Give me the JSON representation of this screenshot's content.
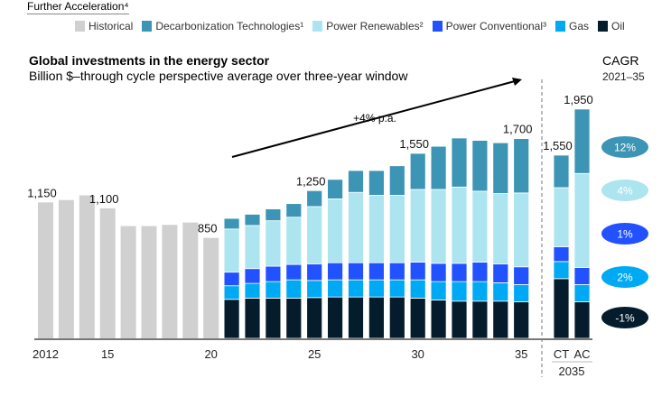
{
  "section_title": "Further Acceleration⁴",
  "legend": [
    {
      "label": "Historical",
      "color": "#d0d0d0"
    },
    {
      "label": "Decarbonization Technologies¹",
      "color": "#3d95b5"
    },
    {
      "label": "Power Renewables²",
      "color": "#ace5ef"
    },
    {
      "label": "Power Conventional³",
      "color": "#2251ff"
    },
    {
      "label": "Gas",
      "color": "#00a9f4"
    },
    {
      "label": "Oil",
      "color": "#051c2c"
    }
  ],
  "cagr": {
    "title": "CAGR",
    "period": "2021–35",
    "values": [
      {
        "series": "Decarbonization Technologies",
        "label": "12%",
        "color": "#3d95b5"
      },
      {
        "series": "Power Renewables",
        "label": "4%",
        "color": "#ace5ef"
      },
      {
        "series": "Power Conventional",
        "label": "1%",
        "color": "#2251ff"
      },
      {
        "series": "Gas",
        "label": "2%",
        "color": "#00a9f4"
      },
      {
        "series": "Oil",
        "label": "-1%",
        "color": "#051c2c"
      }
    ]
  },
  "chart_data": {
    "type": "bar",
    "stacked": true,
    "title": "Global investments in the energy sector",
    "subtitle": "Billion $–through cycle perspective average over three-year window",
    "annotation": "+4% p.a.",
    "ylim": [
      0,
      2000
    ],
    "grid": false,
    "legend_position": "top",
    "historical": {
      "name": "Historical",
      "categories": [
        "2012",
        "2013",
        "2014",
        "2015",
        "2016",
        "2017",
        "2018",
        "2019",
        "2020"
      ],
      "values": [
        1150,
        1170,
        1210,
        1100,
        950,
        950,
        960,
        980,
        850
      ]
    },
    "forecast_categories": [
      "2021",
      "2022",
      "2023",
      "2024",
      "2025",
      "2026",
      "2027",
      "2028",
      "2029",
      "2030",
      "2031",
      "2032",
      "2033",
      "2034",
      "2035"
    ],
    "scenario_categories": [
      "CT",
      "AC"
    ],
    "series": [
      {
        "name": "Oil",
        "values": [
          330,
          340,
          340,
          340,
          345,
          350,
          350,
          350,
          350,
          340,
          325,
          315,
          315,
          315,
          310
        ],
        "scenarios": [
          505,
          310
        ]
      },
      {
        "name": "Gas",
        "values": [
          115,
          125,
          140,
          155,
          145,
          145,
          145,
          145,
          145,
          155,
          155,
          165,
          165,
          155,
          145
        ],
        "scenarios": [
          145,
          145
        ]
      },
      {
        "name": "Power Conventional",
        "values": [
          115,
          125,
          130,
          130,
          140,
          145,
          145,
          145,
          145,
          150,
          155,
          155,
          165,
          160,
          150
        ],
        "scenarios": [
          125,
          145
        ]
      },
      {
        "name": "Power Renewables",
        "values": [
          365,
          365,
          385,
          400,
          485,
          540,
          595,
          570,
          570,
          615,
          625,
          645,
          600,
          595,
          625
        ],
        "scenarios": [
          500,
          795
        ]
      },
      {
        "name": "Decarbonization Technologies",
        "values": [
          90,
          95,
          100,
          115,
          135,
          165,
          185,
          210,
          250,
          305,
          365,
          415,
          430,
          430,
          460
        ],
        "scenarios": [
          275,
          545
        ]
      }
    ],
    "x_tick_labels": [
      {
        "category": "2012",
        "label": "2012"
      },
      {
        "category": "2015",
        "label": "15"
      },
      {
        "category": "2020",
        "label": "20"
      },
      {
        "category": "2025",
        "label": "25"
      },
      {
        "category": "2030",
        "label": "30"
      },
      {
        "category": "2035",
        "label": "35"
      },
      {
        "category": "CT",
        "label": "CT"
      },
      {
        "category": "AC",
        "label": "AC"
      }
    ],
    "scenario_group_label": "2035",
    "data_labels": [
      {
        "category": "2012",
        "label": "1,150"
      },
      {
        "category": "2015",
        "label": "1,100"
      },
      {
        "category": "2020",
        "label": "850"
      },
      {
        "category": "2025",
        "label": "1,250"
      },
      {
        "category": "2030",
        "label": "1,550"
      },
      {
        "category": "2035",
        "label": "1,700"
      },
      {
        "category": "CT",
        "label": "1,550"
      },
      {
        "category": "AC",
        "label": "1,950"
      }
    ]
  }
}
